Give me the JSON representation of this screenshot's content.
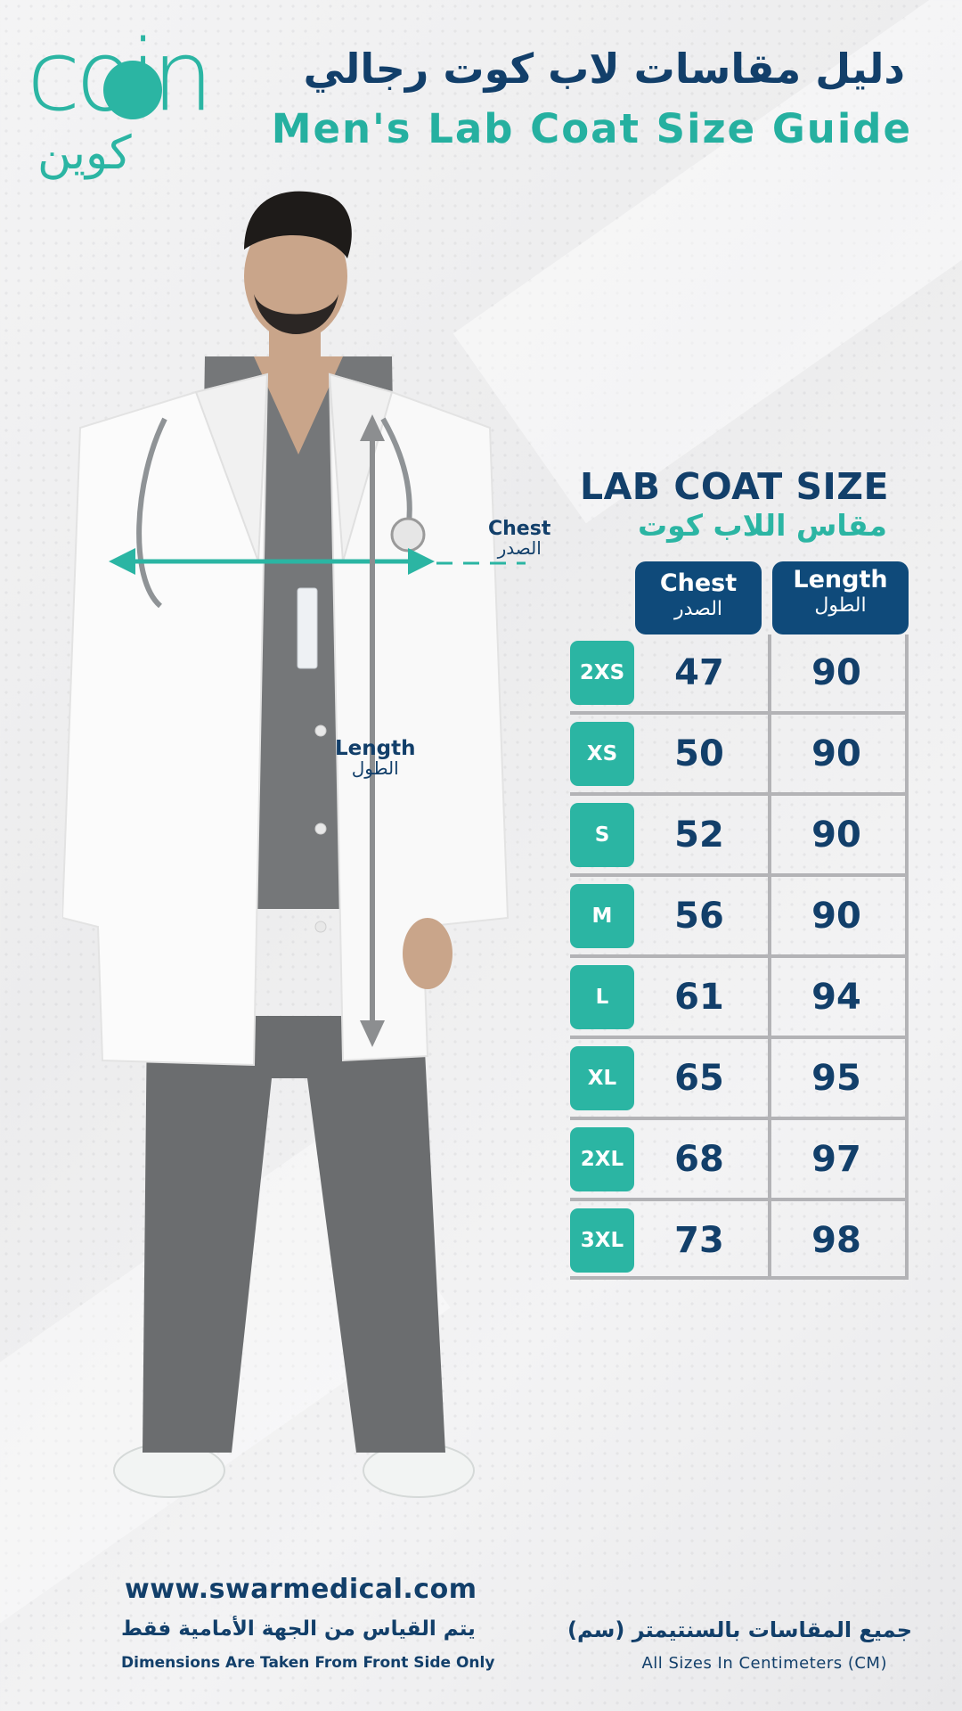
{
  "brand": {
    "logo_latin": "coin",
    "logo_arabic": "كوين"
  },
  "header": {
    "title_ar": "دليل مقاسات لاب كوت رجالي",
    "title_en": "Men's Lab Coat Size Guide"
  },
  "measurements": {
    "chest_en": "Chest",
    "chest_ar": "الصدر",
    "length_en": "Length",
    "length_ar": "الطول"
  },
  "table": {
    "title": "LAB COAT SIZE",
    "subtitle": "مقاس اللاب كوت",
    "headers": {
      "chest_en": "Chest",
      "chest_ar": "الصدر",
      "length_en": "Length",
      "length_ar": "الطول"
    },
    "rows": [
      {
        "size": "2XS",
        "chest": "47",
        "length": "90"
      },
      {
        "size": "XS",
        "chest": "50",
        "length": "90"
      },
      {
        "size": "S",
        "chest": "52",
        "length": "90"
      },
      {
        "size": "M",
        "chest": "56",
        "length": "90"
      },
      {
        "size": "L",
        "chest": "61",
        "length": "94"
      },
      {
        "size": "XL",
        "chest": "65",
        "length": "95"
      },
      {
        "size": "2XL",
        "chest": "68",
        "length": "97"
      },
      {
        "size": "3XL",
        "chest": "73",
        "length": "98"
      }
    ]
  },
  "footer": {
    "url": "www.swarmedical.com",
    "front_note_ar": "يتم القياس من الجهة الأمامية فقط",
    "front_note_en": "Dimensions Are Taken From Front Side Only",
    "units_note_ar": "جميع المقاسات بالسنتيمتر (سم)",
    "units_note_en": "All Sizes In Centimeters (CM)"
  },
  "colors": {
    "navy": "#123f6a",
    "teal": "#2bb5a3",
    "header_fill": "#0f4a7a",
    "grid": "#b3b3b6"
  }
}
